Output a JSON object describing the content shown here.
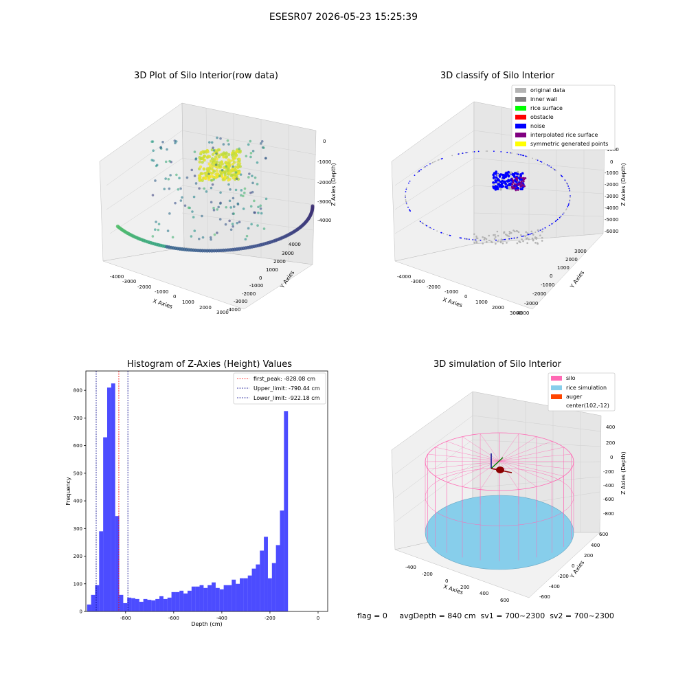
{
  "page": {
    "title": "ESESR07 2026-05-23 15:25:39"
  },
  "status": {
    "text": "flag = 0     avgDepth = 840 cm  sv1 = 700~2300  sv2 = 700~2300"
  },
  "chart_data": [
    {
      "type": "scatter3d",
      "title": "3D Plot of Silo Interior(row data)",
      "xlabel": "X Axies",
      "ylabel": "Y Axies",
      "zlabel": "Z Axies (Depth)",
      "xticks": [
        "-4000",
        "-3000",
        "-2000",
        "-1000",
        "0",
        "1000",
        "2000",
        "3000"
      ],
      "yticks": [
        "4000",
        "3000",
        "2000",
        "1000",
        "0",
        "-1000",
        "-2000",
        "-3000",
        "-4000"
      ],
      "zticks": [
        "0",
        "-1000",
        "-2000",
        "-3000",
        "-4000"
      ],
      "colormap": "viridis"
    },
    {
      "type": "scatter3d",
      "title": "3D classify of Silo Interior",
      "xlabel": "X Axies",
      "ylabel": "Y Axies",
      "zlabel": "Z Axies (Depth)",
      "xticks": [
        "-4000",
        "-3000",
        "-2000",
        "-1000",
        "0",
        "1000",
        "2000",
        "3000"
      ],
      "yticks": [
        "3000",
        "2000",
        "1000",
        "0",
        "-1000",
        "-2000",
        "-3000",
        "-4000"
      ],
      "zticks": [
        "1000",
        "0",
        "-1000",
        "-2000",
        "-3000",
        "-4000",
        "-5000",
        "-6000"
      ],
      "legend": [
        {
          "label": "original data",
          "color": "#b3b3b3"
        },
        {
          "label": "inner wall",
          "color": "#808080"
        },
        {
          "label": "rice surface",
          "color": "#00ff00"
        },
        {
          "label": "obstacle",
          "color": "#ff0000"
        },
        {
          "label": "noise",
          "color": "#0000ff"
        },
        {
          "label": "interpolated rice surface",
          "color": "#800080"
        },
        {
          "label": "symmetric generated points",
          "color": "#ffff00"
        }
      ],
      "legend_position": "top-right"
    },
    {
      "type": "bar",
      "title": "Histogram of Z-Axies (Height) Values",
      "xlabel": "Depth (cm)",
      "ylabel": "Frequency",
      "xlim": [
        -965,
        40
      ],
      "ylim": [
        0,
        870
      ],
      "xticks": [
        -800,
        -600,
        -400,
        -200,
        0
      ],
      "yticks": [
        0,
        100,
        200,
        300,
        400,
        500,
        600,
        700,
        800
      ],
      "bin_start": -960,
      "bin_width": 16.7,
      "values": [
        25,
        60,
        95,
        290,
        630,
        810,
        825,
        345,
        60,
        30,
        50,
        48,
        45,
        35,
        45,
        42,
        40,
        45,
        55,
        45,
        50,
        70,
        70,
        75,
        65,
        75,
        90,
        90,
        95,
        85,
        95,
        105,
        85,
        80,
        95,
        95,
        115,
        100,
        120,
        120,
        130,
        155,
        170,
        220,
        270,
        120,
        175,
        240,
        365,
        725
      ],
      "bar_color": "#0000ff",
      "vlines": [
        {
          "x": -828.08,
          "color": "#ff0000",
          "label": "first_peak: -828.08 cm"
        },
        {
          "x": -790.44,
          "color": "#00008b",
          "label": "Upper_limit: -790.44 cm"
        },
        {
          "x": -922.18,
          "color": "#00008b",
          "label": "Lower_limit: -922.18 cm"
        }
      ],
      "legend_position": "top-right"
    },
    {
      "type": "surface3d",
      "title": "3D simulation of Silo Interior",
      "xlabel": "X Axies",
      "ylabel": "Y Axies",
      "zlabel": "Z Axies (Depth)",
      "xticks": [
        "-400",
        "-200",
        "0",
        "200",
        "400",
        "600"
      ],
      "yticks": [
        "600",
        "400",
        "200",
        "0",
        "-200",
        "-400",
        "-600"
      ],
      "zticks": [
        "400",
        "200",
        "0",
        "-200",
        "-400",
        "-600",
        "-800"
      ],
      "legend": [
        {
          "label": "silo",
          "color": "#ff69b4"
        },
        {
          "label": "rice simulation",
          "color": "#87ceeb"
        },
        {
          "label": "auger",
          "color": "#ff4500"
        },
        {
          "label": "center(102,-12)",
          "color": ""
        }
      ],
      "legend_position": "top-right"
    }
  ]
}
